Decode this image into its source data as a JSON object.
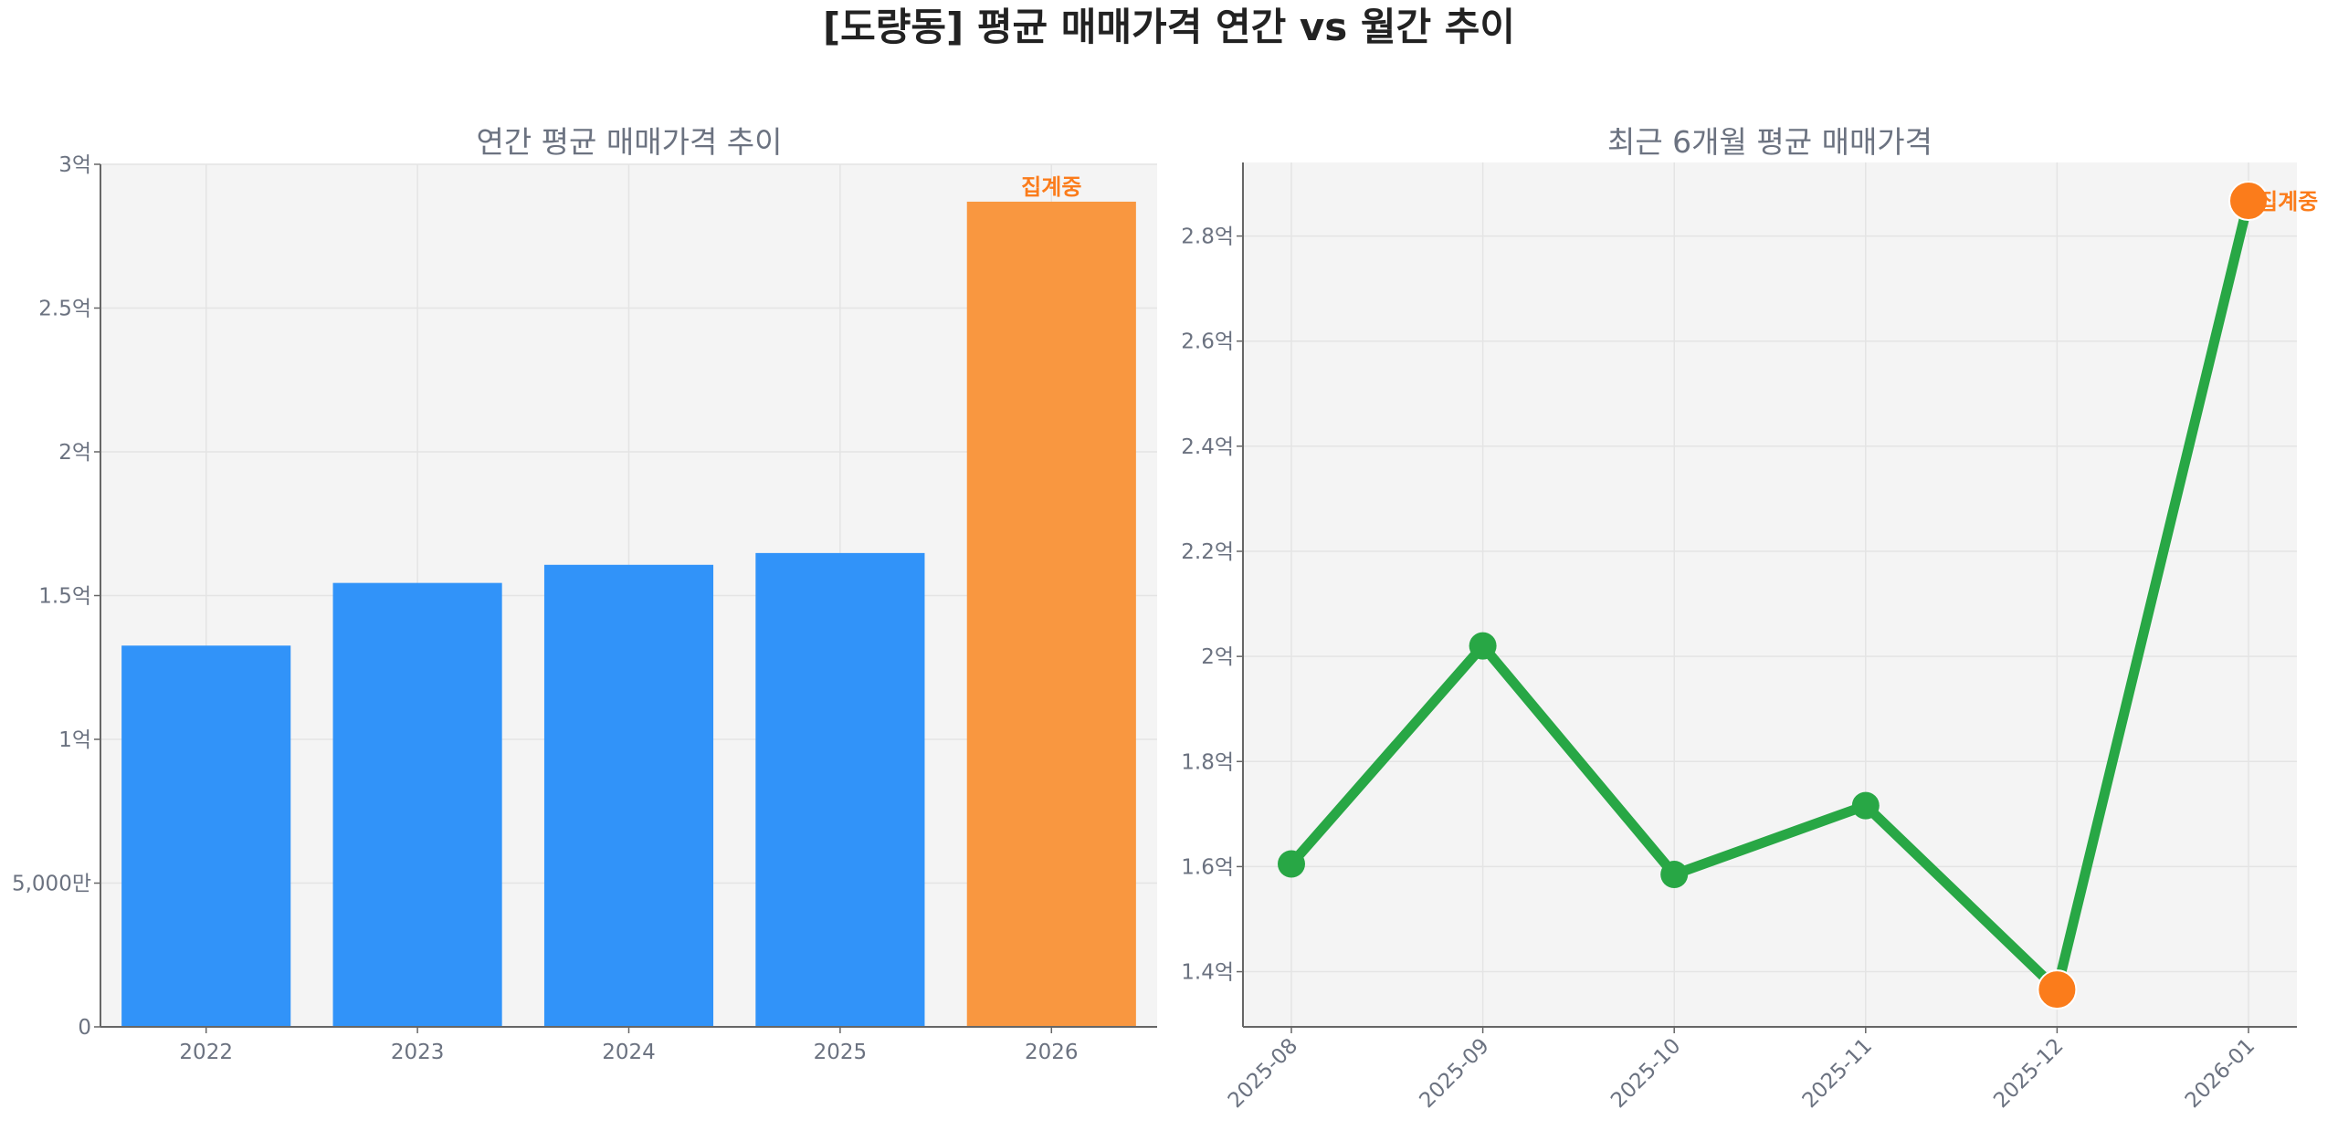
{
  "title": "[도량동] 평균 매매가격 연간 vs 월간 추이",
  "chart_data": [
    {
      "type": "bar",
      "title": "연간 평균 매매가격 추이",
      "categories": [
        "2022",
        "2023",
        "2024",
        "2025",
        "2026"
      ],
      "values": [
        132600000,
        154400000,
        160700000,
        164800000,
        287000000
      ],
      "colors": [
        "#3193f9",
        "#3193f9",
        "#3193f9",
        "#3193f9",
        "#f99740"
      ],
      "annotation": {
        "category": "2026",
        "text": "집계중",
        "color": "#fb7c1b"
      },
      "ylim": [
        0,
        300000000
      ],
      "yticks": [
        0,
        50000000,
        100000000,
        150000000,
        200000000,
        250000000,
        300000000
      ],
      "ytick_labels": [
        "0",
        "5,000만",
        "1억",
        "1.5억",
        "2억",
        "2.5억",
        "3억"
      ],
      "grid": true,
      "background": "#f4f4f4"
    },
    {
      "type": "line",
      "title": "최근 6개월 평균 매매가격",
      "x": [
        "2025-08",
        "2025-09",
        "2025-10",
        "2025-11",
        "2025-12",
        "2026-01"
      ],
      "values": [
        160500000,
        202000000,
        158500000,
        171600000,
        136600000,
        286700000
      ],
      "line_color": "#28a745",
      "highlight_points": [
        "2025-12",
        "2026-01"
      ],
      "highlight_color": "#fb7c1b",
      "annotation": {
        "x": "2026-01",
        "text": "집계중",
        "color": "#fb7c1b"
      },
      "ylim": [
        129500000,
        294000000
      ],
      "yticks": [
        140000000,
        160000000,
        180000000,
        200000000,
        220000000,
        240000000,
        260000000,
        280000000
      ],
      "ytick_labels": [
        "1.4억",
        "1.6억",
        "1.8억",
        "2억",
        "2.2억",
        "2.4억",
        "2.6억",
        "2.8억"
      ],
      "grid": true,
      "background": "#f4f4f4"
    }
  ]
}
